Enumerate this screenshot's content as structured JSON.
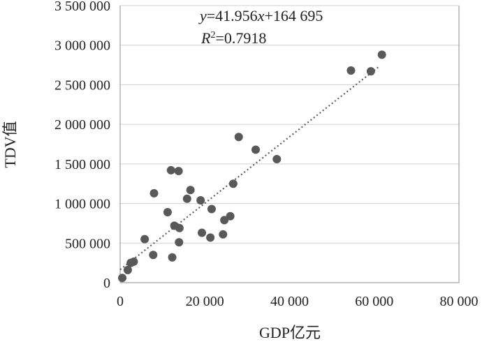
{
  "chart_data": {
    "type": "scatter",
    "title": "",
    "xlabel": "GDP亿元",
    "ylabel": "TDV值",
    "xlim": [
      0,
      80000
    ],
    "ylim": [
      0,
      3500000
    ],
    "x_ticks": [
      0,
      20000,
      40000,
      60000,
      80000
    ],
    "x_tick_labels": [
      "0",
      "20 000",
      "40 000",
      "60 000",
      "80 000"
    ],
    "y_ticks": [
      0,
      500000,
      1000000,
      1500000,
      2000000,
      2500000,
      3000000,
      3500000
    ],
    "y_tick_labels": [
      "0",
      "500 000",
      "1 000 000",
      "1 500 000",
      "2 000 000",
      "2 500 000",
      "3 000 000",
      "3 500 000"
    ],
    "grid": "horizontal",
    "trendline": {
      "type": "linear",
      "slope": 41.956,
      "intercept": 164695,
      "style": "dotted",
      "x_range": [
        0,
        61000
      ]
    },
    "equation_text": {
      "y_var": "y",
      "eq_mid": "=41.956",
      "x_var": "x",
      "eq_tail": "+164 695",
      "r_var": "R",
      "r_exp": "2",
      "r_value": "=0.7918"
    },
    "points": [
      [
        500,
        60000
      ],
      [
        1800,
        160000
      ],
      [
        2500,
        250000
      ],
      [
        3200,
        265000
      ],
      [
        5800,
        550000
      ],
      [
        7800,
        350000
      ],
      [
        8000,
        1130000
      ],
      [
        11200,
        890000
      ],
      [
        12000,
        1420000
      ],
      [
        12300,
        320000
      ],
      [
        12800,
        720000
      ],
      [
        13800,
        1410000
      ],
      [
        13900,
        510000
      ],
      [
        14000,
        690000
      ],
      [
        15800,
        1060000
      ],
      [
        16600,
        1170000
      ],
      [
        19000,
        1040000
      ],
      [
        19300,
        630000
      ],
      [
        21300,
        570000
      ],
      [
        21600,
        930000
      ],
      [
        24300,
        610000
      ],
      [
        24600,
        790000
      ],
      [
        26000,
        840000
      ],
      [
        26700,
        1250000
      ],
      [
        28000,
        1840000
      ],
      [
        32000,
        1680000
      ],
      [
        37000,
        1560000
      ],
      [
        54500,
        2680000
      ],
      [
        59200,
        2670000
      ],
      [
        61800,
        2880000
      ]
    ],
    "colors": {
      "points": "#595959",
      "trendline": "#5f5f5f",
      "grid": "#d0d0d0",
      "axis": "#8c8c8c",
      "text": "#222222"
    }
  }
}
